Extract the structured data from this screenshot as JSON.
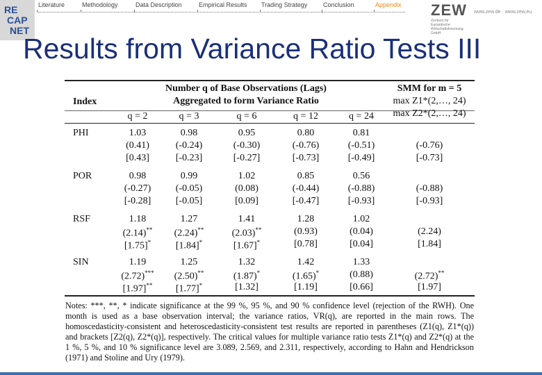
{
  "nav": {
    "logo": [
      "RE",
      "CAP",
      "NET"
    ],
    "items": [
      {
        "label": "Literature"
      },
      {
        "label": "Methodology"
      },
      {
        "label": "Data Description"
      },
      {
        "label": "Empirical Results"
      },
      {
        "label": "Trading Strategy"
      },
      {
        "label": "Conclusion"
      },
      {
        "label": "Appendix",
        "highlight": true
      }
    ]
  },
  "zew": {
    "name": "ZEW",
    "subtitle": "Zentrum für Europäische Wirtschaftsforschung GmbH",
    "url": "www.zew.de · www.zew.eu"
  },
  "title": "Results from Variance Ratio Tests III",
  "table": {
    "header": {
      "index": "Index",
      "group": [
        "Number q of Base Observations (Lags)",
        "Aggregated to form Variance Ratio"
      ],
      "smm_title": "SMM for m = 5",
      "smm_lines": [
        "max Z1*(2,…, 24)",
        "max Z2*(2,…, 24)"
      ],
      "columns": [
        "q = 2",
        "q = 3",
        "q = 6",
        "q = 12",
        "q = 24"
      ]
    },
    "rows": [
      {
        "name": "PHI",
        "cells": [
          [
            {
              "text": "1.03"
            },
            {
              "text": "(0.41)"
            },
            {
              "text": "[0.43]"
            }
          ],
          [
            {
              "text": "0.98"
            },
            {
              "text": "(-0.24)"
            },
            {
              "text": "[-0.23]"
            }
          ],
          [
            {
              "text": "0.95"
            },
            {
              "text": "(-0.30)"
            },
            {
              "text": "[-0.27]"
            }
          ],
          [
            {
              "text": "0.80"
            },
            {
              "text": "(-0.76)"
            },
            {
              "text": "[-0.73]"
            }
          ],
          [
            {
              "text": "0.81"
            },
            {
              "text": "(-0.51)"
            },
            {
              "text": "[-0.49]"
            }
          ]
        ],
        "smm": [
          {
            "text": "(-0.76)"
          },
          {
            "text": "[-0.73]"
          }
        ]
      },
      {
        "name": "POR",
        "cells": [
          [
            {
              "text": "0.98"
            },
            {
              "text": "(-0.27)"
            },
            {
              "text": "[-0.28]"
            }
          ],
          [
            {
              "text": "0.99"
            },
            {
              "text": "(-0.05)"
            },
            {
              "text": "[-0.05]"
            }
          ],
          [
            {
              "text": "1.02"
            },
            {
              "text": "(0.08)"
            },
            {
              "text": "[0.09]"
            }
          ],
          [
            {
              "text": "0.85"
            },
            {
              "text": "(-0.44)"
            },
            {
              "text": "[-0.47]"
            }
          ],
          [
            {
              "text": "0.56"
            },
            {
              "text": "(-0.88)"
            },
            {
              "text": "[-0.93]"
            }
          ]
        ],
        "smm": [
          {
            "text": "(-0.88)"
          },
          {
            "text": "[-0.93]"
          }
        ]
      },
      {
        "name": "RSF",
        "cells": [
          [
            {
              "text": "1.18"
            },
            {
              "text": "(2.14)",
              "sig": "**"
            },
            {
              "text": "[1.75]",
              "sig": "*"
            }
          ],
          [
            {
              "text": "1.27"
            },
            {
              "text": "(2.24)",
              "sig": "**"
            },
            {
              "text": "[1.84]",
              "sig": "*"
            }
          ],
          [
            {
              "text": "1.41"
            },
            {
              "text": "(2.03)",
              "sig": "**"
            },
            {
              "text": "[1.67]",
              "sig": "*"
            }
          ],
          [
            {
              "text": "1.28"
            },
            {
              "text": "(0.93)"
            },
            {
              "text": "[0.78]"
            }
          ],
          [
            {
              "text": "1.02"
            },
            {
              "text": "(0.04)"
            },
            {
              "text": "[0.04]"
            }
          ]
        ],
        "smm": [
          {
            "text": "(2.24)"
          },
          {
            "text": "[1.84]"
          }
        ]
      },
      {
        "name": "SIN",
        "cells": [
          [
            {
              "text": "1.19"
            },
            {
              "text": "(2.72)",
              "sig": "***"
            },
            {
              "text": "[1.97]",
              "sig": "**"
            }
          ],
          [
            {
              "text": "1.25"
            },
            {
              "text": "(2.50)",
              "sig": "**"
            },
            {
              "text": "[1.77]",
              "sig": "*"
            }
          ],
          [
            {
              "text": "1.32"
            },
            {
              "text": "(1.87)",
              "sig": "*"
            },
            {
              "text": "[1.32]"
            }
          ],
          [
            {
              "text": "1.42"
            },
            {
              "text": "(1.65)",
              "sig": "*"
            },
            {
              "text": "[1.19]"
            }
          ],
          [
            {
              "text": "1.33"
            },
            {
              "text": "(0.88)"
            },
            {
              "text": "[0.66]"
            }
          ]
        ],
        "smm": [
          {
            "text": "(2.72)",
            "sig": "**"
          },
          {
            "text": "[1.97]"
          }
        ]
      }
    ]
  },
  "notes": "Notes: ***, **, * indicate significance at the 99 %, 95 %, and 90 % confidence level (rejection of the RWH). One month is used as a base observation interval; the variance ratios, VR(q), are reported in the main rows. The homoscedasticity-consistent and heteroscedasticity-consistent test results are reported in parentheses (Z1(q), Z1*(q)) and brackets [Z2(q), Z2*(q)], respectively. The critical values for multiple variance ratio tests Z1*(q) and Z2*(q) at the 1 %, 5 %, and 10 % significance level are 3.089, 2.569, and 2.311, respectively, according to Hahn and Hendrickson (1971) and Stoline and Ury (1979)."
}
